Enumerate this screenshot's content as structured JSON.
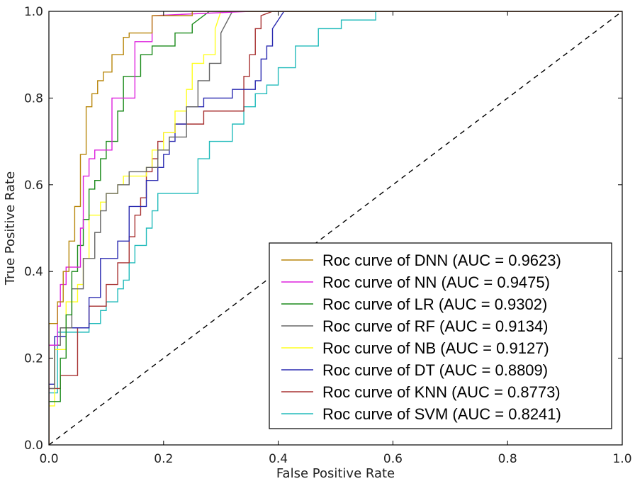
{
  "chart_data": {
    "type": "line",
    "title": "",
    "xlabel": "False Positive Rate",
    "ylabel": "True Positive Rate",
    "xlim": [
      0,
      1
    ],
    "ylim": [
      0,
      1.0
    ],
    "grid": false,
    "legend_position": "lower-right",
    "x_ticks": [
      {
        "value": 0.0,
        "label": "0.0"
      },
      {
        "value": 0.2,
        "label": "0.2"
      },
      {
        "value": 0.4,
        "label": "0.4"
      },
      {
        "value": 0.6,
        "label": "0.6"
      },
      {
        "value": 0.8,
        "label": "0.8"
      },
      {
        "value": 1.0,
        "label": "1.0"
      }
    ],
    "y_ticks": [
      {
        "value": 0.0,
        "label": "0.0"
      },
      {
        "value": 0.2,
        "label": "0.2"
      },
      {
        "value": 0.4,
        "label": "0.4"
      },
      {
        "value": 0.6,
        "label": "0.6"
      },
      {
        "value": 0.8,
        "label": "0.8"
      },
      {
        "value": 1.0,
        "label": "1.0"
      }
    ],
    "reference_line": {
      "name": "chance",
      "x": [
        0,
        1
      ],
      "y": [
        0,
        1
      ],
      "color": "#000000",
      "style": "dashed"
    },
    "series": [
      {
        "name": "Roc curve of DNN (AUC = 0.9623)",
        "color": "#b8860b",
        "x": [
          0,
          0,
          0.015,
          0.015,
          0.025,
          0.025,
          0.035,
          0.035,
          0.045,
          0.045,
          0.055,
          0.055,
          0.065,
          0.065,
          0.075,
          0.075,
          0.085,
          0.085,
          0.095,
          0.095,
          0.11,
          0.11,
          0.13,
          0.13,
          0.14,
          0.14,
          0.18,
          0.18,
          0.25,
          0.25,
          0.28,
          1
        ],
        "y": [
          0,
          0.28,
          0.28,
          0.33,
          0.33,
          0.4,
          0.4,
          0.47,
          0.47,
          0.55,
          0.55,
          0.67,
          0.67,
          0.78,
          0.78,
          0.81,
          0.81,
          0.84,
          0.84,
          0.86,
          0.86,
          0.9,
          0.9,
          0.94,
          0.94,
          0.95,
          0.95,
          0.99,
          0.99,
          1.0,
          1.0,
          1.0
        ]
      },
      {
        "name": "Roc curve of NN (AUC = 0.9475)",
        "color": "#dd22dd",
        "x": [
          0,
          0,
          0.015,
          0.015,
          0.02,
          0.02,
          0.03,
          0.03,
          0.055,
          0.055,
          0.06,
          0.06,
          0.07,
          0.07,
          0.08,
          0.08,
          0.11,
          0.11,
          0.15,
          0.15,
          0.18,
          0.18,
          0.35,
          1
        ],
        "y": [
          0,
          0.23,
          0.23,
          0.32,
          0.32,
          0.37,
          0.37,
          0.41,
          0.41,
          0.5,
          0.5,
          0.62,
          0.62,
          0.66,
          0.66,
          0.68,
          0.68,
          0.8,
          0.8,
          0.93,
          0.93,
          0.99,
          1.0,
          1.0
        ]
      },
      {
        "name": "Roc curve of LR (AUC = 0.9302)",
        "color": "#1a8a1a",
        "x": [
          0,
          0,
          0.02,
          0.02,
          0.03,
          0.03,
          0.04,
          0.04,
          0.05,
          0.05,
          0.06,
          0.06,
          0.07,
          0.07,
          0.08,
          0.08,
          0.09,
          0.09,
          0.1,
          0.1,
          0.12,
          0.12,
          0.13,
          0.13,
          0.16,
          0.16,
          0.18,
          0.18,
          0.22,
          0.22,
          0.25,
          0.25,
          0.28,
          1
        ],
        "y": [
          0,
          0.1,
          0.1,
          0.2,
          0.2,
          0.3,
          0.3,
          0.4,
          0.4,
          0.46,
          0.46,
          0.52,
          0.52,
          0.59,
          0.59,
          0.61,
          0.61,
          0.66,
          0.66,
          0.7,
          0.7,
          0.77,
          0.77,
          0.85,
          0.85,
          0.9,
          0.9,
          0.92,
          0.92,
          0.95,
          0.95,
          0.97,
          1.0,
          1.0
        ]
      },
      {
        "name": "Roc curve of RF (AUC = 0.9134)",
        "color": "#666666",
        "x": [
          0,
          0,
          0.01,
          0.01,
          0.02,
          0.02,
          0.04,
          0.04,
          0.06,
          0.06,
          0.08,
          0.08,
          0.09,
          0.09,
          0.1,
          0.1,
          0.12,
          0.12,
          0.14,
          0.14,
          0.17,
          0.17,
          0.19,
          0.19,
          0.21,
          0.21,
          0.24,
          0.24,
          0.26,
          0.26,
          0.28,
          0.28,
          0.3,
          0.3,
          0.32,
          1
        ],
        "y": [
          0,
          0.13,
          0.13,
          0.23,
          0.23,
          0.27,
          0.27,
          0.36,
          0.36,
          0.43,
          0.43,
          0.49,
          0.49,
          0.54,
          0.54,
          0.58,
          0.58,
          0.6,
          0.6,
          0.63,
          0.63,
          0.64,
          0.64,
          0.68,
          0.68,
          0.71,
          0.71,
          0.78,
          0.78,
          0.84,
          0.84,
          0.88,
          0.88,
          0.95,
          1.0,
          1.0
        ]
      },
      {
        "name": "Roc curve of NB (AUC = 0.9127)",
        "color": "#ffff22",
        "x": [
          0,
          0,
          0.01,
          0.01,
          0.03,
          0.03,
          0.05,
          0.05,
          0.06,
          0.06,
          0.07,
          0.07,
          0.09,
          0.09,
          0.1,
          0.1,
          0.12,
          0.12,
          0.13,
          0.13,
          0.17,
          0.17,
          0.18,
          0.18,
          0.2,
          0.2,
          0.22,
          0.22,
          0.24,
          0.24,
          0.25,
          0.25,
          0.27,
          0.27,
          0.29,
          0.29,
          0.3,
          1
        ],
        "y": [
          0,
          0.09,
          0.09,
          0.22,
          0.22,
          0.33,
          0.33,
          0.37,
          0.37,
          0.43,
          0.43,
          0.53,
          0.53,
          0.56,
          0.56,
          0.58,
          0.58,
          0.6,
          0.6,
          0.62,
          0.62,
          0.64,
          0.64,
          0.68,
          0.68,
          0.72,
          0.72,
          0.77,
          0.77,
          0.82,
          0.82,
          0.88,
          0.88,
          0.9,
          0.9,
          0.96,
          1.0,
          1.0
        ]
      },
      {
        "name": "Roc curve of DT (AUC = 0.8809)",
        "color": "#2a2ab0",
        "x": [
          0,
          0,
          0.01,
          0.01,
          0.03,
          0.03,
          0.07,
          0.07,
          0.09,
          0.09,
          0.12,
          0.12,
          0.14,
          0.14,
          0.17,
          0.17,
          0.19,
          0.19,
          0.2,
          0.2,
          0.21,
          0.21,
          0.22,
          0.22,
          0.24,
          0.24,
          0.27,
          0.27,
          0.32,
          0.32,
          0.36,
          0.36,
          0.37,
          0.37,
          0.38,
          0.38,
          0.39,
          0.39,
          0.41,
          1
        ],
        "y": [
          0,
          0.14,
          0.14,
          0.25,
          0.25,
          0.27,
          0.27,
          0.34,
          0.34,
          0.43,
          0.43,
          0.47,
          0.47,
          0.55,
          0.55,
          0.61,
          0.61,
          0.64,
          0.64,
          0.67,
          0.67,
          0.7,
          0.7,
          0.74,
          0.74,
          0.78,
          0.78,
          0.8,
          0.8,
          0.82,
          0.82,
          0.84,
          0.84,
          0.89,
          0.89,
          0.92,
          0.92,
          0.96,
          1.0,
          1.0
        ]
      },
      {
        "name": "Roc curve of KNN (AUC = 0.8773)",
        "color": "#a83232",
        "x": [
          0,
          0,
          0.02,
          0.02,
          0.05,
          0.05,
          0.07,
          0.07,
          0.1,
          0.1,
          0.12,
          0.12,
          0.14,
          0.14,
          0.15,
          0.15,
          0.16,
          0.16,
          0.17,
          0.17,
          0.18,
          0.18,
          0.19,
          0.19,
          0.2,
          0.2,
          0.22,
          0.22,
          0.27,
          0.27,
          0.34,
          0.34,
          0.35,
          0.35,
          0.36,
          0.36,
          0.37,
          0.37,
          0.39,
          1
        ],
        "y": [
          0,
          0.13,
          0.13,
          0.16,
          0.16,
          0.27,
          0.27,
          0.32,
          0.32,
          0.37,
          0.37,
          0.42,
          0.42,
          0.48,
          0.48,
          0.53,
          0.53,
          0.57,
          0.57,
          0.63,
          0.63,
          0.66,
          0.66,
          0.7,
          0.7,
          0.72,
          0.72,
          0.74,
          0.74,
          0.77,
          0.77,
          0.85,
          0.85,
          0.9,
          0.9,
          0.96,
          0.96,
          0.99,
          1.0,
          1.0
        ]
      },
      {
        "name": "Roc curve of SVM (AUC = 0.8241)",
        "color": "#22bbbb",
        "x": [
          0,
          0,
          0.015,
          0.015,
          0.07,
          0.07,
          0.09,
          0.09,
          0.1,
          0.1,
          0.12,
          0.12,
          0.13,
          0.13,
          0.14,
          0.14,
          0.15,
          0.15,
          0.17,
          0.17,
          0.18,
          0.18,
          0.19,
          0.19,
          0.26,
          0.26,
          0.28,
          0.28,
          0.32,
          0.32,
          0.34,
          0.34,
          0.36,
          0.36,
          0.38,
          0.38,
          0.4,
          0.4,
          0.43,
          0.43,
          0.47,
          0.47,
          0.51,
          0.51,
          0.57,
          0.57,
          1
        ],
        "y": [
          0,
          0.12,
          0.12,
          0.26,
          0.26,
          0.28,
          0.28,
          0.31,
          0.31,
          0.33,
          0.33,
          0.36,
          0.36,
          0.38,
          0.38,
          0.42,
          0.42,
          0.46,
          0.46,
          0.5,
          0.5,
          0.54,
          0.54,
          0.58,
          0.58,
          0.66,
          0.66,
          0.7,
          0.7,
          0.74,
          0.74,
          0.78,
          0.78,
          0.81,
          0.81,
          0.83,
          0.83,
          0.87,
          0.87,
          0.92,
          0.92,
          0.96,
          0.96,
          0.98,
          0.98,
          1.0,
          1.0
        ]
      }
    ]
  }
}
